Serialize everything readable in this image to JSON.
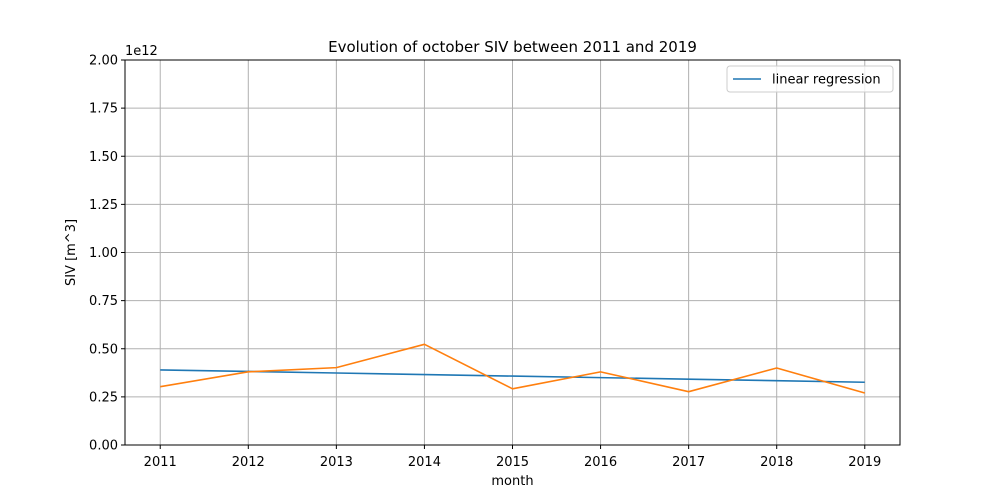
{
  "chart_data": {
    "type": "line",
    "title": "Evolution of october SIV between 2011 and 2019",
    "xlabel": "month",
    "ylabel": "SIV [m^3]",
    "y_offset_label": "1e12",
    "x": [
      2011,
      2012,
      2013,
      2014,
      2015,
      2016,
      2017,
      2018,
      2019
    ],
    "xlim": [
      2010.6,
      2019.4
    ],
    "ylim": [
      0,
      2.0
    ],
    "y_ticks": [
      "0.00",
      "0.25",
      "0.50",
      "0.75",
      "1.00",
      "1.25",
      "1.50",
      "1.75",
      "2.00"
    ],
    "x_ticks": [
      "2011",
      "2012",
      "2013",
      "2014",
      "2015",
      "2016",
      "2017",
      "2018",
      "2019"
    ],
    "grid": true,
    "legend_position": "top-right",
    "series": [
      {
        "name": "linear regression",
        "color": "#1f77b4",
        "values": [
          0.39,
          0.382,
          0.374,
          0.366,
          0.358,
          0.35,
          0.342,
          0.334,
          0.326
        ]
      },
      {
        "color": "#ff7f0e",
        "values": [
          0.303,
          0.38,
          0.402,
          0.523,
          0.292,
          0.38,
          0.277,
          0.4,
          0.27
        ]
      }
    ]
  }
}
